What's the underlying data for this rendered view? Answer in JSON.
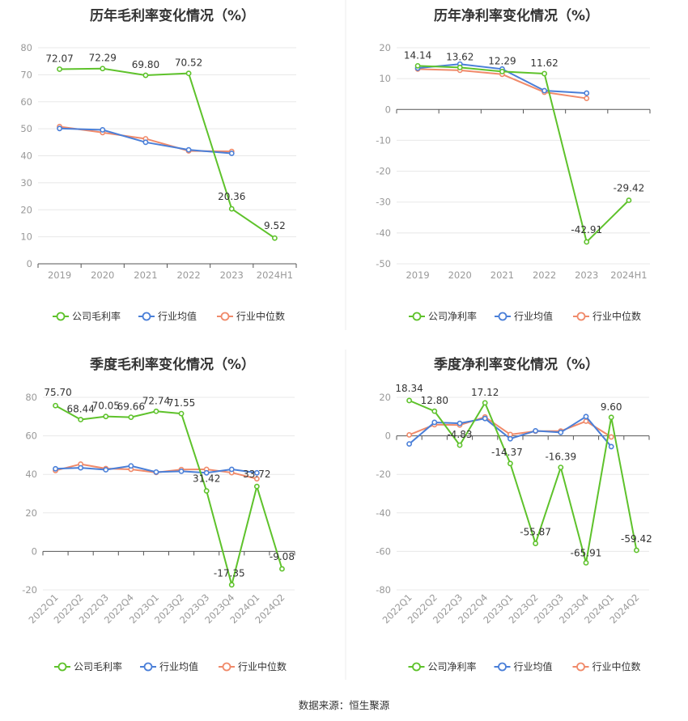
{
  "source": "数据来源：恒生聚源",
  "colors": {
    "company": "#5ec22b",
    "avg": "#4a7fd8",
    "median": "#f08a6a"
  },
  "legend": {
    "gross": [
      "公司毛利率",
      "行业均值",
      "行业中位数"
    ],
    "net": [
      "公司净利率",
      "行业均值",
      "行业中位数"
    ]
  },
  "chart_data": [
    {
      "type": "line",
      "title": "历年毛利率变化情况（%）",
      "categories": [
        "2019",
        "2020",
        "2021",
        "2022",
        "2023",
        "2024H1"
      ],
      "ylim": [
        0,
        80
      ],
      "yticks": [
        0,
        10,
        20,
        30,
        40,
        50,
        60,
        70,
        80
      ],
      "series": [
        {
          "name": "公司毛利率",
          "values": [
            72.07,
            72.29,
            69.8,
            70.52,
            20.36,
            9.52
          ],
          "labels": [
            "72.07",
            "72.29",
            "69.80",
            "70.52",
            "20.36",
            "9.52"
          ]
        },
        {
          "name": "行业均值",
          "values": [
            50.1,
            49.6,
            45.0,
            42.2,
            40.9,
            null
          ]
        },
        {
          "name": "行业中位数",
          "values": [
            50.8,
            48.6,
            46.3,
            41.8,
            41.6,
            null
          ]
        }
      ]
    },
    {
      "type": "line",
      "title": "历年净利率变化情况（%）",
      "categories": [
        "2019",
        "2020",
        "2021",
        "2022",
        "2023",
        "2024H1"
      ],
      "ylim": [
        -50,
        20
      ],
      "yticks": [
        -50,
        -40,
        -30,
        -20,
        -10,
        0,
        10,
        20
      ],
      "series": [
        {
          "name": "公司净利率",
          "values": [
            14.14,
            13.62,
            12.29,
            11.62,
            -42.91,
            -29.42
          ],
          "labels": [
            "14.14",
            "13.62",
            "12.29",
            "11.62",
            "-42.91",
            "-29.42"
          ]
        },
        {
          "name": "行业均值",
          "values": [
            13.4,
            14.7,
            13.1,
            6.1,
            5.3,
            null
          ]
        },
        {
          "name": "行业中位数",
          "values": [
            13.1,
            12.7,
            11.4,
            5.6,
            3.6,
            null
          ]
        }
      ]
    },
    {
      "type": "line",
      "title": "季度毛利率变化情况（%）",
      "categories": [
        "2022Q1",
        "2022Q2",
        "2022Q3",
        "2022Q4",
        "2023Q1",
        "2023Q2",
        "2023Q3",
        "2023Q4",
        "2024Q1",
        "2024Q2"
      ],
      "ylim": [
        -20,
        80
      ],
      "yticks": [
        -20,
        0,
        20,
        40,
        60,
        80
      ],
      "series": [
        {
          "name": "公司毛利率",
          "values": [
            75.7,
            68.44,
            70.05,
            69.66,
            72.74,
            71.55,
            31.42,
            -17.35,
            33.72,
            -9.08
          ],
          "labels": [
            "75.70",
            "68.44",
            "70.05",
            "69.66",
            "72.74",
            "71.55",
            "31.42",
            "-17.35",
            "33.72",
            "-9.08"
          ]
        },
        {
          "name": "行业均值",
          "values": [
            42.9,
            43.4,
            42.4,
            44.4,
            41.2,
            41.6,
            40.8,
            42.6,
            40.8,
            null
          ]
        },
        {
          "name": "行业中位数",
          "values": [
            42.0,
            45.3,
            43.0,
            42.6,
            41.0,
            42.5,
            42.6,
            40.9,
            37.7,
            null
          ]
        }
      ]
    },
    {
      "type": "line",
      "title": "季度净利率变化情况（%）",
      "categories": [
        "2022Q1",
        "2022Q2",
        "2022Q3",
        "2022Q4",
        "2023Q1",
        "2023Q2",
        "2023Q3",
        "2023Q4",
        "2024Q1",
        "2024Q2"
      ],
      "ylim": [
        -80,
        20
      ],
      "yticks": [
        -80,
        -60,
        -40,
        -20,
        0,
        20
      ],
      "series": [
        {
          "name": "公司净利率",
          "values": [
            18.34,
            12.8,
            -4.83,
            17.12,
            -14.37,
            -55.87,
            -16.39,
            -65.91,
            9.6,
            -59.42
          ],
          "labels": [
            "18.34",
            "12.80",
            "-4.83",
            "17.12",
            "-14.37",
            "-55.87",
            "-16.39",
            "-65.91",
            "9.60",
            "-59.42"
          ]
        },
        {
          "name": "行业均值",
          "values": [
            -4.2,
            7.0,
            6.5,
            9.0,
            -1.5,
            2.6,
            1.8,
            10.0,
            -5.6,
            null
          ]
        },
        {
          "name": "行业中位数",
          "values": [
            0.5,
            5.8,
            5.6,
            9.8,
            0.7,
            2.4,
            2.5,
            7.6,
            -0.6,
            null
          ]
        }
      ]
    }
  ]
}
